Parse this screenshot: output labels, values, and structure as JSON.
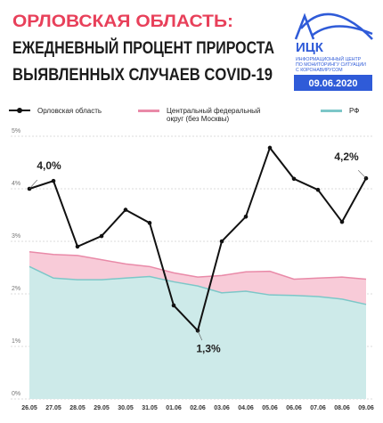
{
  "header": {
    "logo": "ИЦК",
    "logo_text": [
      "ИНФОРМАЦИОННЫЙ ЦЕНТР",
      "ПО МОНИТОРИНГУ СИТУАЦИИ",
      "С КОРОНАВИРУСОМ"
    ],
    "date": "09.06.2020"
  },
  "chart_data": {
    "type": "line-area",
    "title": [
      "ОРЛОВСКАЯ ОБЛАСТЬ:",
      "ЕЖЕДНЕВНЫЙ ПРОЦЕНТ ПРИРОСТА",
      "ВЫЯВЛЕННЫХ СЛУЧАЕВ COVID-19"
    ],
    "categories": [
      "26.05",
      "27.05",
      "28.05",
      "29.05",
      "30.05",
      "31.05",
      "01.06",
      "02.06",
      "03.06",
      "04.06",
      "05.06",
      "06.06",
      "07.06",
      "08.06",
      "09.06"
    ],
    "series": [
      {
        "name": "Орловская область",
        "color": "#111111",
        "style": "line",
        "values": [
          4.0,
          4.15,
          2.9,
          3.1,
          3.6,
          3.35,
          1.78,
          1.3,
          3.0,
          3.47,
          4.78,
          4.19,
          3.98,
          3.37,
          4.2
        ],
        "value_labels": [
          "4,0%",
          null,
          null,
          null,
          null,
          null,
          null,
          "1,3%",
          null,
          null,
          null,
          null,
          null,
          null,
          "4,2%"
        ]
      },
      {
        "name": "Центральный федеральный округ (без Москвы)",
        "color": "#e98aa8",
        "fill": "#f8cbd8",
        "style": "area",
        "values": [
          2.8,
          2.75,
          2.73,
          2.65,
          2.57,
          2.52,
          2.4,
          2.32,
          2.35,
          2.42,
          2.43,
          2.28,
          2.3,
          2.32,
          2.28
        ]
      },
      {
        "name": "РФ",
        "color": "#7cc7c8",
        "fill": "#cdeae9",
        "style": "area",
        "values": [
          2.52,
          2.3,
          2.27,
          2.27,
          2.3,
          2.33,
          2.23,
          2.15,
          2.02,
          2.05,
          1.98,
          1.97,
          1.95,
          1.9,
          1.8
        ]
      }
    ],
    "ylim": [
      0,
      5
    ],
    "yticks": [
      {
        "value": 0,
        "label": "0%"
      },
      {
        "value": 1,
        "label": "1%"
      },
      {
        "value": 2,
        "label": "2%"
      },
      {
        "value": 3,
        "label": "3%"
      },
      {
        "value": 4,
        "label": "4%"
      },
      {
        "value": 5,
        "label": "5%"
      }
    ],
    "grid": true
  }
}
